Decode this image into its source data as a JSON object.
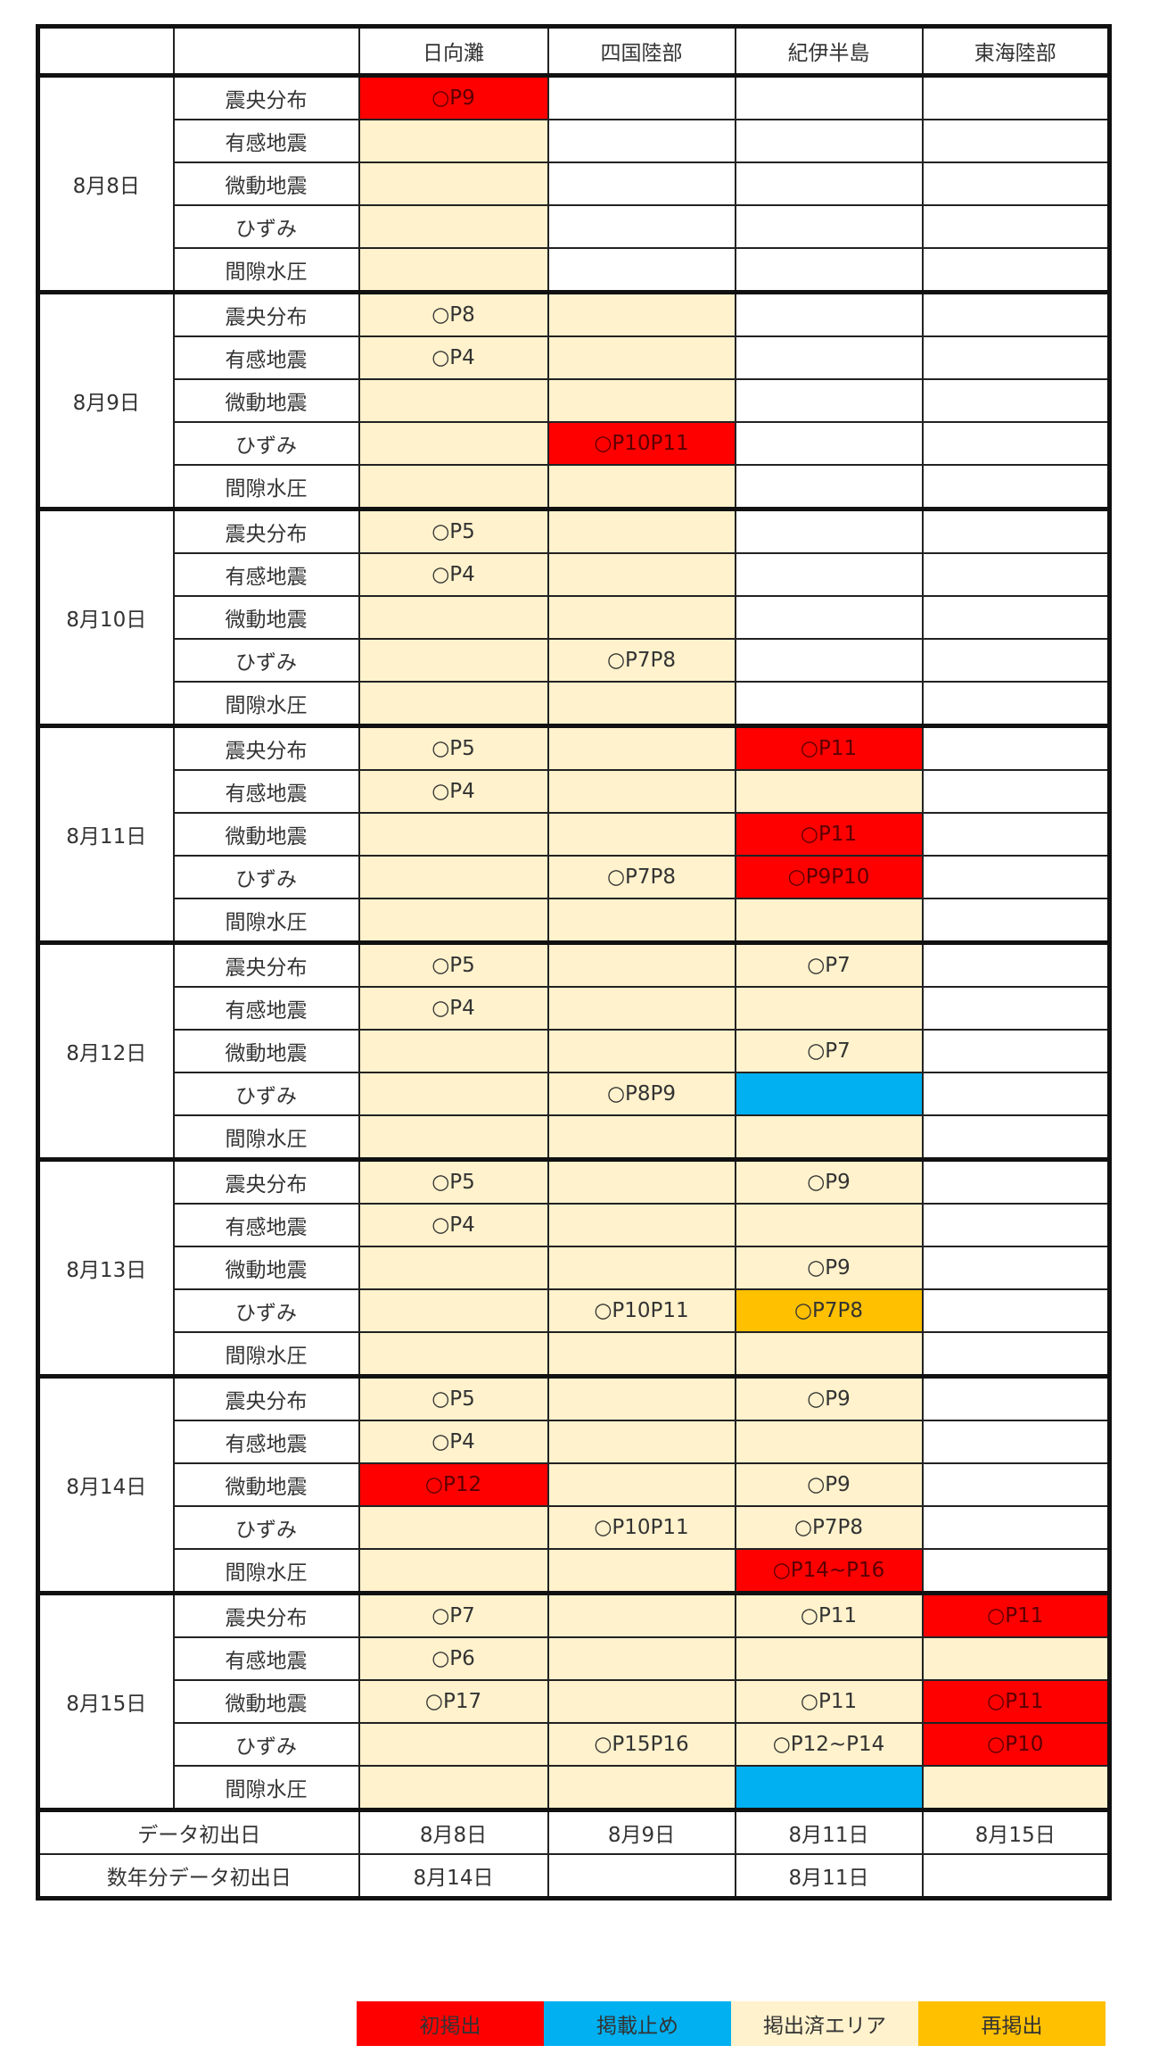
{
  "colors": {
    "r": "#FF0000",
    "b": "#00B0F0",
    "c": "#FFF2CC",
    "o": "#FFC000"
  },
  "header": {
    "areas": [
      "日向灘",
      "四国陸部",
      "紀伊半島",
      "東海陸部"
    ]
  },
  "groups": [
    {
      "date": "8月8日",
      "rows": [
        {
          "item": "震央分布",
          "cells": [
            {
              "s": "r",
              "t": "○P9"
            },
            {
              "s": "",
              "t": ""
            },
            {
              "s": "",
              "t": ""
            },
            {
              "s": "",
              "t": ""
            }
          ]
        },
        {
          "item": "有感地震",
          "cells": [
            {
              "s": "c",
              "t": ""
            },
            {
              "s": "",
              "t": ""
            },
            {
              "s": "",
              "t": ""
            },
            {
              "s": "",
              "t": ""
            }
          ]
        },
        {
          "item": "微動地震",
          "cells": [
            {
              "s": "c",
              "t": ""
            },
            {
              "s": "",
              "t": ""
            },
            {
              "s": "",
              "t": ""
            },
            {
              "s": "",
              "t": ""
            }
          ]
        },
        {
          "item": "ひずみ",
          "cells": [
            {
              "s": "c",
              "t": ""
            },
            {
              "s": "",
              "t": ""
            },
            {
              "s": "",
              "t": ""
            },
            {
              "s": "",
              "t": ""
            }
          ]
        },
        {
          "item": "間隙水圧",
          "cells": [
            {
              "s": "c",
              "t": ""
            },
            {
              "s": "",
              "t": ""
            },
            {
              "s": "",
              "t": ""
            },
            {
              "s": "",
              "t": ""
            }
          ]
        }
      ]
    },
    {
      "date": "8月9日",
      "rows": [
        {
          "item": "震央分布",
          "cells": [
            {
              "s": "c",
              "t": "○P8"
            },
            {
              "s": "c",
              "t": ""
            },
            {
              "s": "",
              "t": ""
            },
            {
              "s": "",
              "t": ""
            }
          ]
        },
        {
          "item": "有感地震",
          "cells": [
            {
              "s": "c",
              "t": "○P4"
            },
            {
              "s": "c",
              "t": ""
            },
            {
              "s": "",
              "t": ""
            },
            {
              "s": "",
              "t": ""
            }
          ]
        },
        {
          "item": "微動地震",
          "cells": [
            {
              "s": "c",
              "t": ""
            },
            {
              "s": "c",
              "t": ""
            },
            {
              "s": "",
              "t": ""
            },
            {
              "s": "",
              "t": ""
            }
          ]
        },
        {
          "item": "ひずみ",
          "cells": [
            {
              "s": "c",
              "t": ""
            },
            {
              "s": "r",
              "t": "○P10P11"
            },
            {
              "s": "",
              "t": ""
            },
            {
              "s": "",
              "t": ""
            }
          ]
        },
        {
          "item": "間隙水圧",
          "cells": [
            {
              "s": "c",
              "t": ""
            },
            {
              "s": "c",
              "t": ""
            },
            {
              "s": "",
              "t": ""
            },
            {
              "s": "",
              "t": ""
            }
          ]
        }
      ]
    },
    {
      "date": "8月10日",
      "rows": [
        {
          "item": "震央分布",
          "cells": [
            {
              "s": "c",
              "t": "○P5"
            },
            {
              "s": "c",
              "t": ""
            },
            {
              "s": "",
              "t": ""
            },
            {
              "s": "",
              "t": ""
            }
          ]
        },
        {
          "item": "有感地震",
          "cells": [
            {
              "s": "c",
              "t": "○P4"
            },
            {
              "s": "c",
              "t": ""
            },
            {
              "s": "",
              "t": ""
            },
            {
              "s": "",
              "t": ""
            }
          ]
        },
        {
          "item": "微動地震",
          "cells": [
            {
              "s": "c",
              "t": ""
            },
            {
              "s": "c",
              "t": ""
            },
            {
              "s": "",
              "t": ""
            },
            {
              "s": "",
              "t": ""
            }
          ]
        },
        {
          "item": "ひずみ",
          "cells": [
            {
              "s": "c",
              "t": ""
            },
            {
              "s": "c",
              "t": "○P7P8"
            },
            {
              "s": "",
              "t": ""
            },
            {
              "s": "",
              "t": ""
            }
          ]
        },
        {
          "item": "間隙水圧",
          "cells": [
            {
              "s": "c",
              "t": ""
            },
            {
              "s": "c",
              "t": ""
            },
            {
              "s": "",
              "t": ""
            },
            {
              "s": "",
              "t": ""
            }
          ]
        }
      ]
    },
    {
      "date": "8月11日",
      "rows": [
        {
          "item": "震央分布",
          "cells": [
            {
              "s": "c",
              "t": "○P5"
            },
            {
              "s": "c",
              "t": ""
            },
            {
              "s": "r",
              "t": "○P11"
            },
            {
              "s": "",
              "t": ""
            }
          ]
        },
        {
          "item": "有感地震",
          "cells": [
            {
              "s": "c",
              "t": "○P4"
            },
            {
              "s": "c",
              "t": ""
            },
            {
              "s": "c",
              "t": ""
            },
            {
              "s": "",
              "t": ""
            }
          ]
        },
        {
          "item": "微動地震",
          "cells": [
            {
              "s": "c",
              "t": ""
            },
            {
              "s": "c",
              "t": ""
            },
            {
              "s": "r",
              "t": "○P11"
            },
            {
              "s": "",
              "t": ""
            }
          ]
        },
        {
          "item": "ひずみ",
          "cells": [
            {
              "s": "c",
              "t": ""
            },
            {
              "s": "c",
              "t": "○P7P8"
            },
            {
              "s": "r",
              "t": "○P9P10"
            },
            {
              "s": "",
              "t": ""
            }
          ]
        },
        {
          "item": "間隙水圧",
          "cells": [
            {
              "s": "c",
              "t": ""
            },
            {
              "s": "c",
              "t": ""
            },
            {
              "s": "c",
              "t": ""
            },
            {
              "s": "",
              "t": ""
            }
          ]
        }
      ]
    },
    {
      "date": "8月12日",
      "rows": [
        {
          "item": "震央分布",
          "cells": [
            {
              "s": "c",
              "t": "○P5"
            },
            {
              "s": "c",
              "t": ""
            },
            {
              "s": "c",
              "t": "○P7"
            },
            {
              "s": "",
              "t": ""
            }
          ]
        },
        {
          "item": "有感地震",
          "cells": [
            {
              "s": "c",
              "t": "○P4"
            },
            {
              "s": "c",
              "t": ""
            },
            {
              "s": "c",
              "t": ""
            },
            {
              "s": "",
              "t": ""
            }
          ]
        },
        {
          "item": "微動地震",
          "cells": [
            {
              "s": "c",
              "t": ""
            },
            {
              "s": "c",
              "t": ""
            },
            {
              "s": "c",
              "t": "○P7"
            },
            {
              "s": "",
              "t": ""
            }
          ]
        },
        {
          "item": "ひずみ",
          "cells": [
            {
              "s": "c",
              "t": ""
            },
            {
              "s": "c",
              "t": "○P8P9"
            },
            {
              "s": "b",
              "t": ""
            },
            {
              "s": "",
              "t": ""
            }
          ]
        },
        {
          "item": "間隙水圧",
          "cells": [
            {
              "s": "c",
              "t": ""
            },
            {
              "s": "c",
              "t": ""
            },
            {
              "s": "c",
              "t": ""
            },
            {
              "s": "",
              "t": ""
            }
          ]
        }
      ]
    },
    {
      "date": "8月13日",
      "rows": [
        {
          "item": "震央分布",
          "cells": [
            {
              "s": "c",
              "t": "○P5"
            },
            {
              "s": "c",
              "t": ""
            },
            {
              "s": "c",
              "t": "○P9"
            },
            {
              "s": "",
              "t": ""
            }
          ]
        },
        {
          "item": "有感地震",
          "cells": [
            {
              "s": "c",
              "t": "○P4"
            },
            {
              "s": "c",
              "t": ""
            },
            {
              "s": "c",
              "t": ""
            },
            {
              "s": "",
              "t": ""
            }
          ]
        },
        {
          "item": "微動地震",
          "cells": [
            {
              "s": "c",
              "t": ""
            },
            {
              "s": "c",
              "t": ""
            },
            {
              "s": "c",
              "t": "○P9"
            },
            {
              "s": "",
              "t": ""
            }
          ]
        },
        {
          "item": "ひずみ",
          "cells": [
            {
              "s": "c",
              "t": ""
            },
            {
              "s": "c",
              "t": "○P10P11"
            },
            {
              "s": "o",
              "t": "○P7P8"
            },
            {
              "s": "",
              "t": ""
            }
          ]
        },
        {
          "item": "間隙水圧",
          "cells": [
            {
              "s": "c",
              "t": ""
            },
            {
              "s": "c",
              "t": ""
            },
            {
              "s": "c",
              "t": ""
            },
            {
              "s": "",
              "t": ""
            }
          ]
        }
      ]
    },
    {
      "date": "8月14日",
      "rows": [
        {
          "item": "震央分布",
          "cells": [
            {
              "s": "c",
              "t": "○P5"
            },
            {
              "s": "c",
              "t": ""
            },
            {
              "s": "c",
              "t": "○P9"
            },
            {
              "s": "",
              "t": ""
            }
          ]
        },
        {
          "item": "有感地震",
          "cells": [
            {
              "s": "c",
              "t": "○P4"
            },
            {
              "s": "c",
              "t": ""
            },
            {
              "s": "c",
              "t": ""
            },
            {
              "s": "",
              "t": ""
            }
          ]
        },
        {
          "item": "微動地震",
          "cells": [
            {
              "s": "r",
              "t": "○P12"
            },
            {
              "s": "c",
              "t": ""
            },
            {
              "s": "c",
              "t": "○P9"
            },
            {
              "s": "",
              "t": ""
            }
          ]
        },
        {
          "item": "ひずみ",
          "cells": [
            {
              "s": "c",
              "t": ""
            },
            {
              "s": "c",
              "t": "○P10P11"
            },
            {
              "s": "c",
              "t": "○P7P8"
            },
            {
              "s": "",
              "t": ""
            }
          ]
        },
        {
          "item": "間隙水圧",
          "cells": [
            {
              "s": "c",
              "t": ""
            },
            {
              "s": "c",
              "t": ""
            },
            {
              "s": "r",
              "t": "○P14~P16"
            },
            {
              "s": "",
              "t": ""
            }
          ]
        }
      ]
    },
    {
      "date": "8月15日",
      "rows": [
        {
          "item": "震央分布",
          "cells": [
            {
              "s": "c",
              "t": "○P7"
            },
            {
              "s": "c",
              "t": ""
            },
            {
              "s": "c",
              "t": "○P11"
            },
            {
              "s": "r",
              "t": "○P11"
            }
          ]
        },
        {
          "item": "有感地震",
          "cells": [
            {
              "s": "c",
              "t": "○P6"
            },
            {
              "s": "c",
              "t": ""
            },
            {
              "s": "c",
              "t": ""
            },
            {
              "s": "c",
              "t": ""
            }
          ]
        },
        {
          "item": "微動地震",
          "cells": [
            {
              "s": "c",
              "t": "○P17"
            },
            {
              "s": "c",
              "t": ""
            },
            {
              "s": "c",
              "t": "○P11"
            },
            {
              "s": "r",
              "t": "○P11"
            }
          ]
        },
        {
          "item": "ひずみ",
          "cells": [
            {
              "s": "c",
              "t": ""
            },
            {
              "s": "c",
              "t": "○P15P16"
            },
            {
              "s": "c",
              "t": "○P12~P14"
            },
            {
              "s": "r",
              "t": "○P10"
            }
          ]
        },
        {
          "item": "間隙水圧",
          "cells": [
            {
              "s": "c",
              "t": ""
            },
            {
              "s": "c",
              "t": ""
            },
            {
              "s": "b",
              "t": ""
            },
            {
              "s": "c",
              "t": ""
            }
          ]
        }
      ]
    }
  ],
  "summary": [
    {
      "label": "データ初出日",
      "values": [
        "8月8日",
        "8月9日",
        "8月11日",
        "8月15日"
      ]
    },
    {
      "label": "数年分データ初出日",
      "values": [
        "8月14日",
        "",
        "8月11日",
        ""
      ]
    }
  ],
  "legend": [
    {
      "label": "初掲出",
      "color": "#FF0000"
    },
    {
      "label": "掲載止め",
      "color": "#00B0F0"
    },
    {
      "label": "掲出済エリア",
      "color": "#FFF2CC"
    },
    {
      "label": "再掲出",
      "color": "#FFC000"
    }
  ]
}
